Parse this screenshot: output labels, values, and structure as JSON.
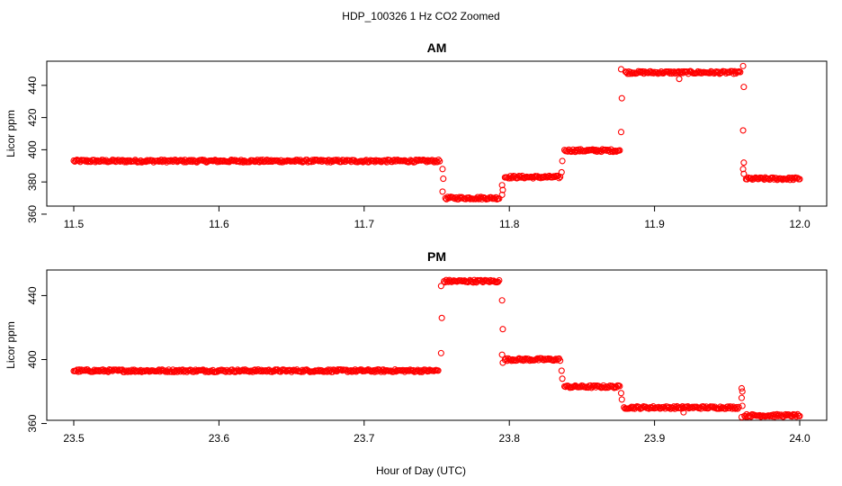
{
  "chart_data": {
    "title": "HDP_100326  1 Hz CO2 Zoomed",
    "xlabel": "Hour of Day (UTC)",
    "colors": {
      "points": "#ff0000",
      "axes": "#000000"
    },
    "panels": [
      {
        "type": "scatter",
        "title": "AM",
        "ylabel": "Licor ppm",
        "xlim": [
          11.5,
          12.0
        ],
        "ylim": [
          365,
          455
        ],
        "xticks": [
          "11.5",
          "11.6",
          "11.7",
          "11.8",
          "11.9",
          "12.0"
        ],
        "yticks": [
          "360",
          "380",
          "400",
          "420",
          "440"
        ],
        "segments": [
          {
            "x": [
              11.5,
              11.752
            ],
            "y": 393
          },
          {
            "x": [
              11.756,
              11.793
            ],
            "y": 370
          },
          {
            "x": [
              11.797,
              11.835
            ],
            "y": 383
          },
          {
            "x": [
              11.838,
              11.876
            ],
            "y": 399.5
          },
          {
            "x": [
              11.88,
              11.959
            ],
            "y": 448
          },
          {
            "x": [
              11.963,
              12.0
            ],
            "y": 382
          }
        ],
        "transitions": [
          {
            "x": 11.754,
            "y": [
              374,
              382,
              388
            ]
          },
          {
            "x": 11.795,
            "y": [
              372,
              375,
              378
            ]
          },
          {
            "x": 11.836,
            "y": [
              386,
              393
            ]
          },
          {
            "x": 11.877,
            "y": [
              411,
              432,
              450
            ]
          },
          {
            "x": 11.917,
            "y": [
              444
            ]
          },
          {
            "x": 11.961,
            "y": [
              452,
              439,
              412,
              392,
              388,
              385
            ]
          }
        ]
      },
      {
        "type": "scatter",
        "title": "PM",
        "ylabel": "Licor ppm",
        "xlim": [
          23.5,
          24.0
        ],
        "ylim": [
          362,
          456
        ],
        "xticks": [
          "23.5",
          "23.6",
          "23.7",
          "23.8",
          "23.9",
          "24.0"
        ],
        "yticks": [
          "360",
          "400",
          "440"
        ],
        "segments": [
          {
            "x": [
              23.5,
              23.751
            ],
            "y": 393
          },
          {
            "x": [
              23.755,
              23.793
            ],
            "y": 449
          },
          {
            "x": [
              23.797,
              23.835
            ],
            "y": 400
          },
          {
            "x": [
              23.838,
              23.876
            ],
            "y": 383
          },
          {
            "x": [
              23.879,
              23.958
            ],
            "y": 370
          },
          {
            "x": [
              23.962,
              24.0
            ],
            "y": 365
          }
        ],
        "transitions": [
          {
            "x": 23.753,
            "y": [
              404,
              426,
              446
            ]
          },
          {
            "x": 23.795,
            "y": [
              437,
              419,
              403,
              398
            ]
          },
          {
            "x": 23.836,
            "y": [
              393,
              388
            ]
          },
          {
            "x": 23.877,
            "y": [
              379,
              375
            ]
          },
          {
            "x": 23.92,
            "y": [
              367
            ]
          },
          {
            "x": 23.96,
            "y": [
              364,
              371,
              376,
              380,
              382
            ]
          }
        ]
      }
    ]
  }
}
